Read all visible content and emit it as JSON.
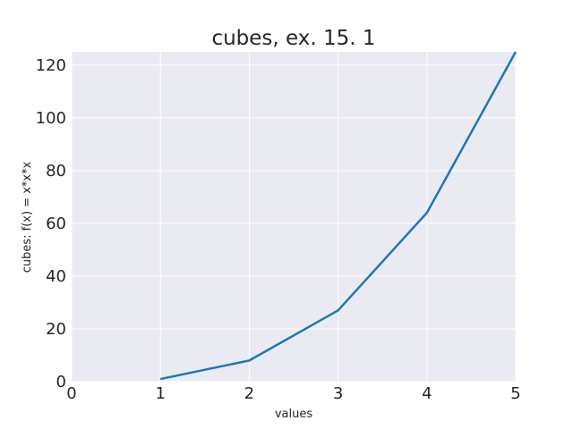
{
  "chart_data": {
    "type": "line",
    "title": "cubes, ex. 15. 1",
    "xlabel": "values",
    "ylabel": "cubes: f(x) = x*x*x",
    "x": [
      1,
      2,
      3,
      4,
      5
    ],
    "series": [
      {
        "values": [
          1,
          8,
          27,
          64,
          125
        ]
      }
    ],
    "xlim": [
      0,
      5
    ],
    "ylim": [
      0,
      125
    ],
    "xticks": [
      0,
      1,
      2,
      3,
      4,
      5
    ],
    "yticks": [
      0,
      20,
      40,
      60,
      80,
      100,
      120
    ],
    "grid": true,
    "colors": {
      "line": "#1f77b4",
      "plot_background": "#eaeaf2",
      "grid": "#ffffff"
    }
  }
}
